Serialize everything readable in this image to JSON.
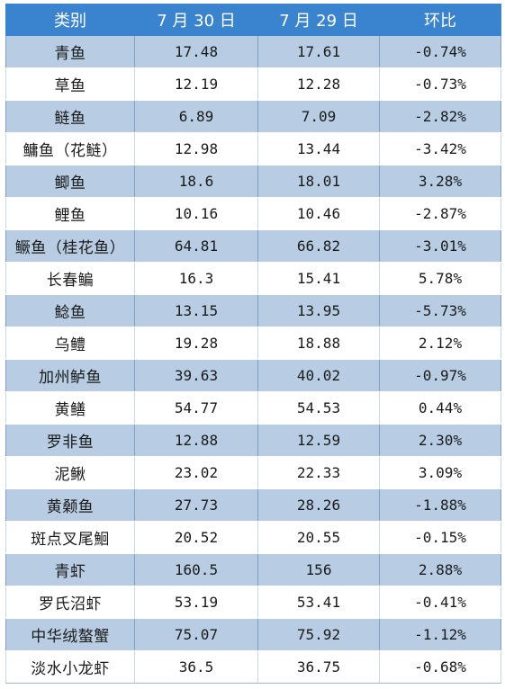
{
  "header": {
    "category": "类别",
    "jul30": "7 月 30 日",
    "jul29": "7 月 29 日",
    "change": "环比"
  },
  "rows": [
    {
      "name": "青鱼",
      "jul30": "17.48",
      "jul29": "17.61",
      "change": "-0.74%"
    },
    {
      "name": "草鱼",
      "jul30": "12.19",
      "jul29": "12.28",
      "change": "-0.73%"
    },
    {
      "name": "鲢鱼",
      "jul30": "6.89",
      "jul29": "7.09",
      "change": "-2.82%"
    },
    {
      "name": "鳙鱼（花鲢）",
      "jul30": "12.98",
      "jul29": "13.44",
      "change": "-3.42%"
    },
    {
      "name": "鲫鱼",
      "jul30": "18.6",
      "jul29": "18.01",
      "change": "3.28%"
    },
    {
      "name": "鲤鱼",
      "jul30": "10.16",
      "jul29": "10.46",
      "change": "-2.87%"
    },
    {
      "name": "鳜鱼（桂花鱼）",
      "jul30": "64.81",
      "jul29": "66.82",
      "change": "-3.01%"
    },
    {
      "name": "长春鳊",
      "jul30": "16.3",
      "jul29": "15.41",
      "change": "5.78%"
    },
    {
      "name": "鲶鱼",
      "jul30": "13.15",
      "jul29": "13.95",
      "change": "-5.73%"
    },
    {
      "name": "乌鳢",
      "jul30": "19.28",
      "jul29": "18.88",
      "change": "2.12%"
    },
    {
      "name": "加州鲈鱼",
      "jul30": "39.63",
      "jul29": "40.02",
      "change": "-0.97%"
    },
    {
      "name": "黄鳝",
      "jul30": "54.77",
      "jul29": "54.53",
      "change": "0.44%"
    },
    {
      "name": "罗非鱼",
      "jul30": "12.88",
      "jul29": "12.59",
      "change": "2.30%"
    },
    {
      "name": "泥鳅",
      "jul30": "23.02",
      "jul29": "22.33",
      "change": "3.09%"
    },
    {
      "name": "黄颡鱼",
      "jul30": "27.73",
      "jul29": "28.26",
      "change": "-1.88%"
    },
    {
      "name": "斑点叉尾鮰",
      "jul30": "20.52",
      "jul29": "20.55",
      "change": "-0.15%"
    },
    {
      "name": "青虾",
      "jul30": "160.5",
      "jul29": "156",
      "change": "2.88%"
    },
    {
      "name": "罗氏沼虾",
      "jul30": "53.19",
      "jul29": "53.41",
      "change": "-0.41%"
    },
    {
      "name": "中华绒螯蟹",
      "jul30": "75.07",
      "jul29": "75.92",
      "change": "-1.12%"
    },
    {
      "name": "淡水小龙虾",
      "jul30": "36.5",
      "jul29": "36.75",
      "change": "-0.68%"
    }
  ],
  "colors": {
    "header_bg": "#3a83cf",
    "band_bg": "#b8cde4",
    "plain_bg": "#ffffff"
  }
}
